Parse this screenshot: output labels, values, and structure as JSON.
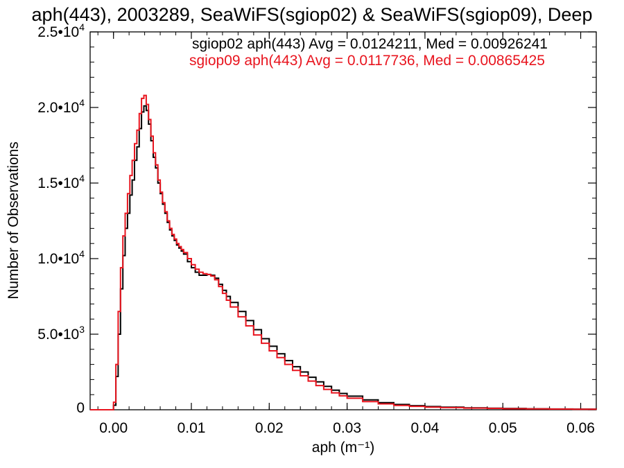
{
  "chart_data": {
    "type": "line",
    "title": "aph(443), 2003289, SeaWiFS(sgiop02) & SeaWiFS(sgiop09), Deep",
    "xlabel": "aph (m⁻¹)",
    "ylabel": "Number of Observations",
    "xlim": [
      -0.003,
      0.062
    ],
    "ylim": [
      0,
      25000
    ],
    "grid": false,
    "x_ticks": [
      0.0,
      0.01,
      0.02,
      0.03,
      0.04,
      0.05,
      0.06
    ],
    "x_tick_labels": [
      "0.00",
      "0.01",
      "0.02",
      "0.03",
      "0.04",
      "0.05",
      "0.06"
    ],
    "y_ticks": [
      0,
      5000,
      10000,
      15000,
      20000,
      25000
    ],
    "y_tick_labels": [
      {
        "mant": "0",
        "exp": ""
      },
      {
        "mant": "5.0•10",
        "exp": "3"
      },
      {
        "mant": "1.0•10",
        "exp": "4"
      },
      {
        "mant": "1.5•10",
        "exp": "4"
      },
      {
        "mant": "2.0•10",
        "exp": "4"
      },
      {
        "mant": "2.5•10",
        "exp": "4"
      }
    ],
    "annotations": [
      "sgiop02 aph(443) Avg = 0.0124211, Med = 0.00926241",
      "sgiop09 aph(443) Avg = 0.0117736, Med = 0.00865425"
    ],
    "series": [
      {
        "color": "#000000",
        "x": [
          -0.003,
          -0.001,
          0.0,
          0.0003,
          0.0006,
          0.0009,
          0.0012,
          0.0015,
          0.0018,
          0.0021,
          0.0024,
          0.0027,
          0.003,
          0.0033,
          0.0036,
          0.0039,
          0.0042,
          0.0045,
          0.0048,
          0.0051,
          0.0054,
          0.0057,
          0.006,
          0.0063,
          0.0066,
          0.0069,
          0.0072,
          0.0075,
          0.0078,
          0.0081,
          0.0084,
          0.0087,
          0.009,
          0.0095,
          0.01,
          0.0105,
          0.011,
          0.0115,
          0.012,
          0.0125,
          0.013,
          0.0135,
          0.014,
          0.0145,
          0.015,
          0.016,
          0.017,
          0.018,
          0.019,
          0.02,
          0.021,
          0.022,
          0.023,
          0.024,
          0.025,
          0.026,
          0.027,
          0.028,
          0.029,
          0.03,
          0.032,
          0.034,
          0.036,
          0.038,
          0.04,
          0.042,
          0.045,
          0.048,
          0.05,
          0.053,
          0.056,
          0.059,
          0.062
        ],
        "y": [
          0,
          0,
          300,
          2200,
          5000,
          8000,
          10200,
          12000,
          13000,
          14200,
          15200,
          16500,
          17400,
          18600,
          19700,
          20100,
          19800,
          18900,
          17800,
          16700,
          16000,
          15000,
          14300,
          13600,
          13000,
          12400,
          11900,
          11500,
          11200,
          10900,
          10700,
          10500,
          10300,
          9800,
          9400,
          9100,
          8900,
          8900,
          8950,
          8900,
          8700,
          8300,
          7900,
          7500,
          7100,
          6500,
          5900,
          5300,
          4700,
          4200,
          3700,
          3250,
          2850,
          2500,
          2150,
          1850,
          1550,
          1300,
          1080,
          900,
          650,
          470,
          350,
          270,
          210,
          170,
          130,
          100,
          85,
          65,
          50,
          40,
          30
        ]
      },
      {
        "color": "#e8141e",
        "x": [
          -0.003,
          -0.001,
          0.0,
          0.0003,
          0.0006,
          0.0009,
          0.0012,
          0.0015,
          0.0018,
          0.0021,
          0.0024,
          0.0027,
          0.003,
          0.0033,
          0.0036,
          0.0039,
          0.0042,
          0.0045,
          0.0048,
          0.0051,
          0.0054,
          0.0057,
          0.006,
          0.0063,
          0.0066,
          0.0069,
          0.0072,
          0.0075,
          0.0078,
          0.0081,
          0.0084,
          0.0087,
          0.009,
          0.0095,
          0.01,
          0.0105,
          0.011,
          0.0115,
          0.012,
          0.0125,
          0.013,
          0.0135,
          0.014,
          0.0145,
          0.015,
          0.016,
          0.017,
          0.018,
          0.019,
          0.02,
          0.021,
          0.022,
          0.023,
          0.024,
          0.025,
          0.026,
          0.027,
          0.028,
          0.029,
          0.03,
          0.032,
          0.034,
          0.036,
          0.038,
          0.04,
          0.042,
          0.045,
          0.048,
          0.05,
          0.053,
          0.056,
          0.059,
          0.062
        ],
        "y": [
          0,
          0,
          500,
          3000,
          6500,
          9400,
          11500,
          13000,
          14300,
          15500,
          16500,
          17600,
          18500,
          19600,
          20600,
          20800,
          20200,
          19200,
          18100,
          17000,
          16200,
          15200,
          14400,
          13700,
          13100,
          12500,
          12000,
          11600,
          11300,
          11000,
          10800,
          10600,
          10400,
          10000,
          9600,
          9300,
          9100,
          9000,
          8950,
          8850,
          8600,
          8150,
          7700,
          7250,
          6800,
          6150,
          5550,
          4950,
          4400,
          3900,
          3450,
          3000,
          2600,
          2250,
          1900,
          1600,
          1350,
          1120,
          920,
          760,
          540,
          390,
          290,
          225,
          175,
          140,
          110,
          90,
          70,
          55,
          45,
          35,
          25
        ]
      }
    ]
  }
}
